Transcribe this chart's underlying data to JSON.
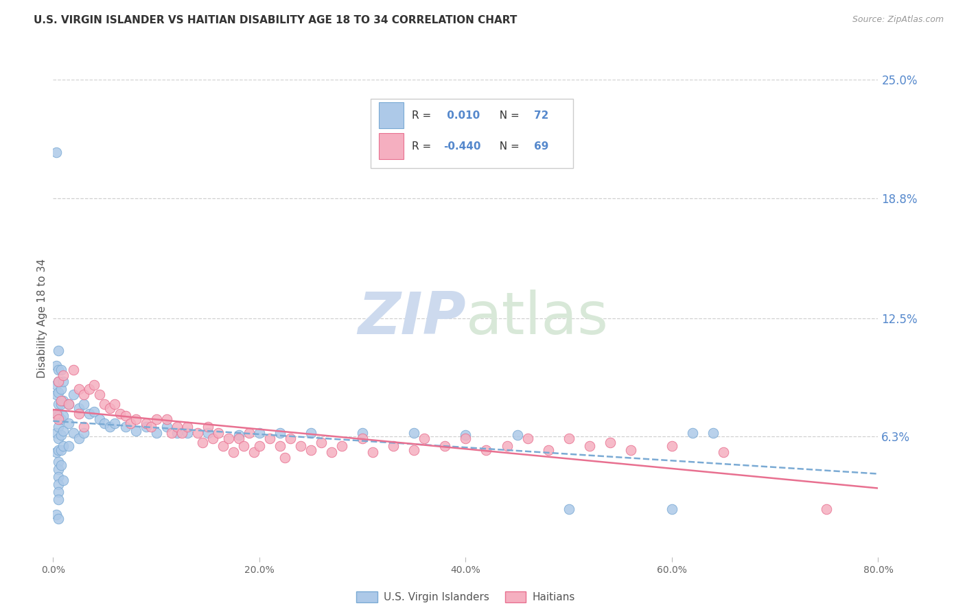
{
  "title": "U.S. VIRGIN ISLANDER VS HAITIAN DISABILITY AGE 18 TO 34 CORRELATION CHART",
  "source": "Source: ZipAtlas.com",
  "ylabel": "Disability Age 18 to 34",
  "xlim": [
    0.0,
    0.8
  ],
  "ylim": [
    0.0,
    0.25
  ],
  "xtick_vals": [
    0.0,
    0.2,
    0.4,
    0.6,
    0.8
  ],
  "xtick_labels": [
    "0.0%",
    "20.0%",
    "40.0%",
    "60.0%",
    "80.0%"
  ],
  "ytick_vals": [
    0.063,
    0.125,
    0.188,
    0.25
  ],
  "ytick_labels": [
    "6.3%",
    "12.5%",
    "18.8%",
    "25.0%"
  ],
  "grid_color": "#d0d0d0",
  "bg_color": "#ffffff",
  "s1_name": "U.S. Virgin Islanders",
  "s1_face": "#adc9e8",
  "s1_edge": "#7aaad4",
  "s1_line": "#7aaad4",
  "s1_R": 0.01,
  "s1_N": 72,
  "s2_name": "Haitians",
  "s2_face": "#f5afc0",
  "s2_edge": "#e87090",
  "s2_line": "#e87090",
  "s2_R": -0.44,
  "s2_N": 69,
  "watermark_color": "#cddaee",
  "right_label_color": "#5588cc",
  "title_color": "#333333",
  "source_color": "#999999",
  "blue_x": [
    0.003,
    0.003,
    0.003,
    0.003,
    0.003,
    0.003,
    0.003,
    0.003,
    0.005,
    0.005,
    0.005,
    0.005,
    0.005,
    0.005,
    0.005,
    0.005,
    0.005,
    0.005,
    0.005,
    0.005,
    0.005,
    0.005,
    0.005,
    0.005,
    0.008,
    0.008,
    0.008,
    0.008,
    0.008,
    0.008,
    0.008,
    0.01,
    0.01,
    0.01,
    0.01,
    0.01,
    0.01,
    0.015,
    0.015,
    0.015,
    0.02,
    0.02,
    0.025,
    0.025,
    0.03,
    0.03,
    0.035,
    0.04,
    0.045,
    0.05,
    0.055,
    0.06,
    0.07,
    0.08,
    0.09,
    0.1,
    0.11,
    0.12,
    0.13,
    0.15,
    0.18,
    0.2,
    0.22,
    0.25,
    0.3,
    0.35,
    0.4,
    0.45,
    0.5,
    0.6,
    0.62,
    0.64
  ],
  "blue_y": [
    0.212,
    0.1,
    0.09,
    0.085,
    0.075,
    0.065,
    0.055,
    0.022,
    0.108,
    0.098,
    0.092,
    0.086,
    0.08,
    0.074,
    0.068,
    0.062,
    0.056,
    0.05,
    0.046,
    0.042,
    0.038,
    0.034,
    0.03,
    0.02,
    0.098,
    0.088,
    0.08,
    0.072,
    0.064,
    0.056,
    0.048,
    0.092,
    0.082,
    0.074,
    0.066,
    0.058,
    0.04,
    0.08,
    0.07,
    0.058,
    0.085,
    0.065,
    0.078,
    0.062,
    0.08,
    0.065,
    0.075,
    0.076,
    0.072,
    0.07,
    0.068,
    0.07,
    0.068,
    0.066,
    0.068,
    0.065,
    0.068,
    0.065,
    0.065,
    0.065,
    0.064,
    0.065,
    0.065,
    0.065,
    0.065,
    0.065,
    0.064,
    0.064,
    0.025,
    0.025,
    0.065,
    0.065
  ],
  "pink_x": [
    0.003,
    0.005,
    0.005,
    0.008,
    0.01,
    0.015,
    0.02,
    0.025,
    0.025,
    0.03,
    0.03,
    0.035,
    0.04,
    0.045,
    0.05,
    0.055,
    0.06,
    0.065,
    0.07,
    0.075,
    0.08,
    0.09,
    0.095,
    0.1,
    0.11,
    0.115,
    0.12,
    0.125,
    0.13,
    0.14,
    0.145,
    0.15,
    0.155,
    0.16,
    0.165,
    0.17,
    0.175,
    0.18,
    0.185,
    0.19,
    0.195,
    0.2,
    0.21,
    0.22,
    0.225,
    0.23,
    0.24,
    0.25,
    0.26,
    0.27,
    0.28,
    0.3,
    0.31,
    0.33,
    0.35,
    0.36,
    0.38,
    0.4,
    0.42,
    0.44,
    0.46,
    0.48,
    0.5,
    0.52,
    0.54,
    0.56,
    0.6,
    0.65,
    0.75
  ],
  "pink_y": [
    0.075,
    0.092,
    0.072,
    0.082,
    0.095,
    0.08,
    0.098,
    0.088,
    0.075,
    0.085,
    0.068,
    0.088,
    0.09,
    0.085,
    0.08,
    0.078,
    0.08,
    0.075,
    0.074,
    0.07,
    0.072,
    0.07,
    0.068,
    0.072,
    0.072,
    0.065,
    0.068,
    0.065,
    0.068,
    0.065,
    0.06,
    0.068,
    0.062,
    0.065,
    0.058,
    0.062,
    0.055,
    0.062,
    0.058,
    0.065,
    0.055,
    0.058,
    0.062,
    0.058,
    0.052,
    0.062,
    0.058,
    0.056,
    0.06,
    0.055,
    0.058,
    0.062,
    0.055,
    0.058,
    0.056,
    0.062,
    0.058,
    0.062,
    0.056,
    0.058,
    0.062,
    0.056,
    0.062,
    0.058,
    0.06,
    0.056,
    0.058,
    0.055,
    0.025
  ]
}
